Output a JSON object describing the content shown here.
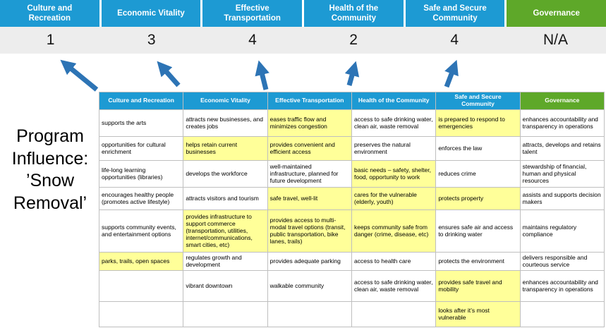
{
  "slide_title": "Program\nInfluence:\n’Snow\nRemoval’",
  "colors": {
    "pillar_blue": "#1d9ad3",
    "pillar_green": "#5ea829",
    "highlight_yellow": "#ffff99",
    "arrow_blue": "#2d74b5",
    "score_band_bg": "#ededed",
    "grid_border": "#bfbfbf"
  },
  "pillars": [
    {
      "name": "Culture and Recreation",
      "score": "1",
      "color": "#1d9ad3"
    },
    {
      "name": "Economic Vitality",
      "score": "3",
      "color": "#1d9ad3"
    },
    {
      "name": "Effective Transportation",
      "score": "4",
      "color": "#1d9ad3"
    },
    {
      "name": "Health of the Community",
      "score": "2",
      "color": "#1d9ad3"
    },
    {
      "name": "Safe and Secure Community",
      "score": "4",
      "color": "#1d9ad3"
    },
    {
      "name": "Governance",
      "score": "N/A",
      "color": "#5ea829"
    }
  ],
  "matrix": {
    "columns": [
      {
        "label": "Culture and Recreation",
        "color": "#1d9ad3"
      },
      {
        "label": "Economic Vitality",
        "color": "#1d9ad3"
      },
      {
        "label": "Effective Transportation",
        "color": "#1d9ad3"
      },
      {
        "label": "Health of the Community",
        "color": "#1d9ad3"
      },
      {
        "label": "Safe and Secure Community",
        "color": "#1d9ad3"
      },
      {
        "label": "Governance",
        "color": "#5ea829"
      }
    ],
    "rows": [
      [
        {
          "text": "supports the arts",
          "highlight": false
        },
        {
          "text": "attracts new businesses, and creates jobs",
          "highlight": false
        },
        {
          "text": "eases traffic flow and minimizes congestion",
          "highlight": true
        },
        {
          "text": "access to safe drinking water, clean air, waste removal",
          "highlight": false
        },
        {
          "text": "is prepared to respond to emergencies",
          "highlight": true
        },
        {
          "text": "enhances accountability and transparency in operations",
          "highlight": false
        }
      ],
      [
        {
          "text": "opportunities for cultural enrichment",
          "highlight": false
        },
        {
          "text": "helps retain current businesses",
          "highlight": true
        },
        {
          "text": "provides convenient and efficient access",
          "highlight": true
        },
        {
          "text": "preserves the natural environment",
          "highlight": false
        },
        {
          "text": "enforces the law",
          "highlight": false
        },
        {
          "text": "attracts, develops and retains talent",
          "highlight": false
        }
      ],
      [
        {
          "text": "life-long learning opportunities (libraries)",
          "highlight": false
        },
        {
          "text": "develops the workforce",
          "highlight": false
        },
        {
          "text": "well-maintained infrastructure, planned for future development",
          "highlight": false
        },
        {
          "text": "basic needs – safety, shelter, food, opportunity to work",
          "highlight": true
        },
        {
          "text": "reduces crime",
          "highlight": false
        },
        {
          "text": "stewardship of financial, human and physical resources",
          "highlight": false
        }
      ],
      [
        {
          "text": "encourages healthy people (promotes active lifestyle)",
          "highlight": false
        },
        {
          "text": "attracts visitors and tourism",
          "highlight": false
        },
        {
          "text": "safe travel, well-lit",
          "highlight": true
        },
        {
          "text": "cares for the vulnerable (elderly, youth)",
          "highlight": true
        },
        {
          "text": "protects property",
          "highlight": true
        },
        {
          "text": "assists and supports decision makers",
          "highlight": false
        }
      ],
      [
        {
          "text": "supports community events, and entertainment options",
          "highlight": false
        },
        {
          "text": "provides infrastructure to support commerce (transportation, utilities, internet/communications, smart cities, etc)",
          "highlight": true
        },
        {
          "text": "provides access to multi-modal travel options (transit, public transportation, bike lanes, trails)",
          "highlight": true
        },
        {
          "text": "keeps community safe from danger (crime, disease, etc)",
          "highlight": true
        },
        {
          "text": "ensures safe air and access to drinking water",
          "highlight": false
        },
        {
          "text": "maintains regulatory compliance",
          "highlight": false
        }
      ],
      [
        {
          "text": "parks, trails, open spaces",
          "highlight": true
        },
        {
          "text": "regulates growth and development",
          "highlight": false
        },
        {
          "text": "provides adequate parking",
          "highlight": false
        },
        {
          "text": "access to health care",
          "highlight": false
        },
        {
          "text": "protects the environment",
          "highlight": false
        },
        {
          "text": "delivers responsible and courteous service",
          "highlight": false
        }
      ],
      [
        {
          "text": "",
          "highlight": false
        },
        {
          "text": "vibrant downtown",
          "highlight": false
        },
        {
          "text": "walkable community",
          "highlight": false
        },
        {
          "text": "access to safe drinking water, clean air, waste removal",
          "highlight": false
        },
        {
          "text": "provides safe travel and mobility",
          "highlight": true
        },
        {
          "text": "enhances accountability and transparency in operations",
          "highlight": false
        }
      ],
      [
        {
          "text": "",
          "highlight": false
        },
        {
          "text": "",
          "highlight": false
        },
        {
          "text": "",
          "highlight": false
        },
        {
          "text": "",
          "highlight": false
        },
        {
          "text": "looks after it’s most vulnerable",
          "highlight": true
        },
        {
          "text": "",
          "highlight": false
        }
      ]
    ]
  }
}
